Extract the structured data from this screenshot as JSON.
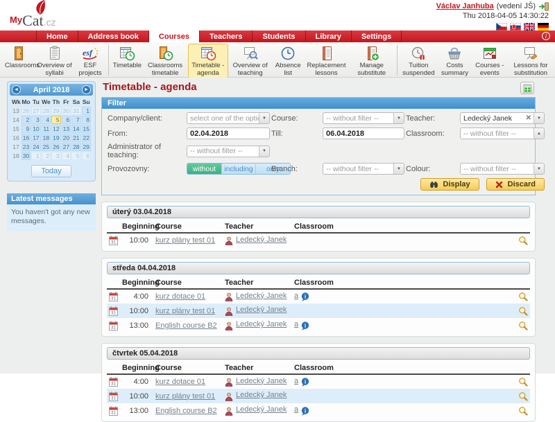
{
  "colors": {
    "nav_red": "#c5161d",
    "title_red": "#a8161c",
    "panel_blue": "#4f9fd6",
    "selected_yellow": "#fdf0b4",
    "row_stripe": "#ddeefa",
    "active_green": "#45bd8b",
    "button_yellow": "#f7cd53"
  },
  "header": {
    "brand_my": "My",
    "brand_cat": "Cat",
    "brand_cz": ".cz",
    "user_name": "Václav Janhuba",
    "user_role": "(vedení JŠ)",
    "datetime": "Thu 2018-04-05 14:30:22",
    "flags": [
      "czech-flag",
      "slovak-flag",
      "british-flag",
      "german-flag"
    ]
  },
  "nav": {
    "items": [
      {
        "label": "Home",
        "active": false
      },
      {
        "label": "Address book",
        "active": false
      },
      {
        "label": "Courses",
        "active": true
      },
      {
        "label": "Teachers",
        "active": false
      },
      {
        "label": "Students",
        "active": false
      },
      {
        "label": "Library",
        "active": false
      },
      {
        "label": "Settings",
        "active": false
      }
    ]
  },
  "toolbar": {
    "items": [
      {
        "label": "Classrooms",
        "icon": "door-icon"
      },
      {
        "label": "Overview of syllabi",
        "icon": "syllabi-clipboard-icon"
      },
      {
        "label": "ESF projects",
        "icon": "esf-projects-icon",
        "divider_after": true
      },
      {
        "label": "Timetable",
        "icon": "timetable-clock-icon"
      },
      {
        "label": "Classrooms timetable",
        "icon": "classroom-timetable-icon"
      },
      {
        "label": "Timetable - agenda",
        "icon": "timetable-agenda-icon",
        "selected": true
      },
      {
        "label": "Overview of teaching",
        "icon": "teaching-overview-icon"
      },
      {
        "label": "Absence list",
        "icon": "absence-clock-icon"
      },
      {
        "label": "Replacement lessons",
        "icon": "replacement-lessons-icon"
      },
      {
        "label": "Manage substitute lessons",
        "icon": "substitute-lessons-icon",
        "divider_after": true
      },
      {
        "label": "Tuition suspended",
        "icon": "tuition-suspended-icon"
      },
      {
        "label": "Costs summary",
        "icon": "costs-basket-icon"
      },
      {
        "label": "Courses - events",
        "icon": "courses-events-icon"
      },
      {
        "label": "Lessons for substitution",
        "icon": "lessons-substitution-icon"
      }
    ]
  },
  "sidebar": {
    "calendar": {
      "title": "April 2018",
      "day_headers": [
        "Wk",
        "Mo",
        "Tu",
        "We",
        "Th",
        "Fr",
        "Sa",
        "Su"
      ],
      "weeks": [
        {
          "wk": "13",
          "days": [
            {
              "d": "26",
              "muted": true
            },
            {
              "d": "27",
              "muted": true
            },
            {
              "d": "28",
              "muted": true
            },
            {
              "d": "29",
              "muted": true
            },
            {
              "d": "30",
              "muted": true
            },
            {
              "d": "31",
              "muted": true
            },
            {
              "d": "1"
            }
          ]
        },
        {
          "wk": "14",
          "days": [
            {
              "d": "2"
            },
            {
              "d": "3"
            },
            {
              "d": "4"
            },
            {
              "d": "5",
              "today": true
            },
            {
              "d": "6"
            },
            {
              "d": "7"
            },
            {
              "d": "8"
            }
          ]
        },
        {
          "wk": "15",
          "days": [
            {
              "d": "9"
            },
            {
              "d": "10"
            },
            {
              "d": "11"
            },
            {
              "d": "12"
            },
            {
              "d": "13"
            },
            {
              "d": "14"
            },
            {
              "d": "15"
            }
          ]
        },
        {
          "wk": "16",
          "days": [
            {
              "d": "16"
            },
            {
              "d": "17"
            },
            {
              "d": "18"
            },
            {
              "d": "19"
            },
            {
              "d": "20"
            },
            {
              "d": "21"
            },
            {
              "d": "22"
            }
          ]
        },
        {
          "wk": "17",
          "days": [
            {
              "d": "23"
            },
            {
              "d": "24"
            },
            {
              "d": "25"
            },
            {
              "d": "26"
            },
            {
              "d": "27"
            },
            {
              "d": "28"
            },
            {
              "d": "29"
            }
          ]
        },
        {
          "wk": "18",
          "days": [
            {
              "d": "30"
            },
            {
              "d": "1",
              "muted": true
            },
            {
              "d": "2",
              "muted": true
            },
            {
              "d": "3",
              "muted": true
            },
            {
              "d": "4",
              "muted": true
            },
            {
              "d": "5",
              "muted": true
            },
            {
              "d": "6",
              "muted": true
            }
          ]
        }
      ],
      "today_label": "Today"
    },
    "messages": {
      "title": "Latest messages",
      "body": "You haven't got any new messages."
    }
  },
  "main": {
    "title": "Timetable - agenda",
    "filter": {
      "title": "Filter",
      "company_label": "Company/client:",
      "company_value": "select one of the options",
      "course_label": "Course:",
      "course_value": "-- without filter --",
      "teacher_label": "Teacher:",
      "teacher_value": "Ledecký Janek",
      "from_label": "From:",
      "from_value": "02.04.2018",
      "till_label": "Till:",
      "till_value": "06.04.2018",
      "classroom_label": "Classroom:",
      "classroom_value": "-- without filter --",
      "admin_label": "Administrator of teaching:",
      "admin_value": "-- without filter --",
      "provozovny_label": "Provozovny:",
      "provozovny_options": [
        "without",
        "including",
        "only"
      ],
      "provozovny_selected": "without",
      "branch_label": "Branch:",
      "branch_value": "-- without filter --",
      "colour_label": "Colour:",
      "colour_value": "-- without filter --",
      "display_button": "Display",
      "discard_button": "Discard"
    },
    "table_headers": [
      "Beginning",
      "Course",
      "Teacher",
      "Classroom"
    ],
    "days": [
      {
        "title": "úterý 03.04.2018",
        "rows": [
          {
            "time": "10:00",
            "course": "kurz plány test 01",
            "teacher": "Ledecký Janek",
            "classroom": ""
          }
        ]
      },
      {
        "title": "středa 04.04.2018",
        "rows": [
          {
            "time": "4:00",
            "course": "kurz dotace 01",
            "teacher": "Ledecký Janek",
            "classroom": "a"
          },
          {
            "time": "10:00",
            "course": "kurz plány test 01",
            "teacher": "Ledecký Janek",
            "classroom": ""
          },
          {
            "time": "13:00",
            "course": "English course B2",
            "teacher": "Ledecký Janek",
            "classroom": "a"
          }
        ]
      },
      {
        "title": "čtvrtek 05.04.2018",
        "rows": [
          {
            "time": "4:00",
            "course": "kurz dotace 01",
            "teacher": "Ledecký Janek",
            "classroom": "a"
          },
          {
            "time": "10:00",
            "course": "kurz plány test 01",
            "teacher": "Ledecký Janek",
            "classroom": ""
          },
          {
            "time": "13:00",
            "course": "English course B2",
            "teacher": "Ledecký Janek",
            "classroom": "a"
          }
        ]
      }
    ]
  }
}
